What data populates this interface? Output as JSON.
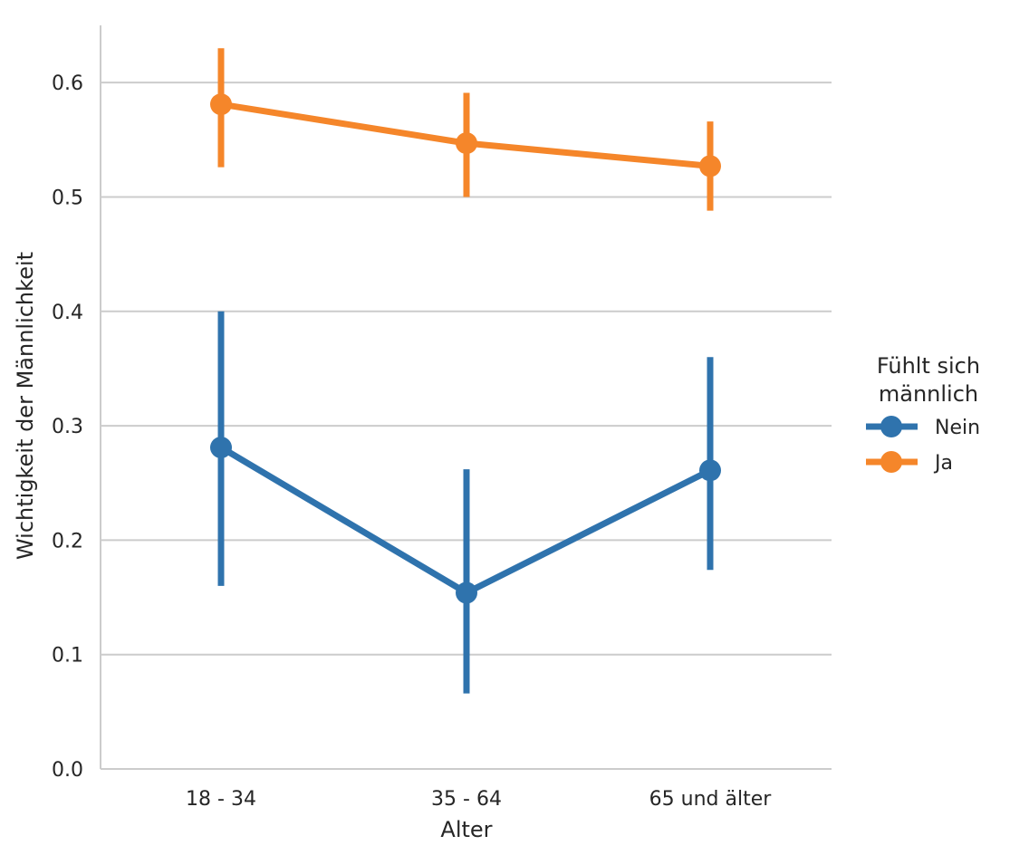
{
  "chart_data": {
    "type": "line",
    "title": "",
    "xlabel": "Alter",
    "ylabel": "Wichtigkeit der Männlichkeit",
    "categories": [
      "18 - 34",
      "35 - 64",
      "65 und älter"
    ],
    "ylim": [
      0.0,
      0.65
    ],
    "yticks": [
      0.0,
      0.1,
      0.2,
      0.3,
      0.4,
      0.5,
      0.6
    ],
    "ytick_labels": [
      "0.0",
      "0.1",
      "0.2",
      "0.3",
      "0.4",
      "0.5",
      "0.6"
    ],
    "grid": "horizontal",
    "legend": {
      "title_lines": [
        "Fühlt sich",
        "männlich"
      ],
      "placement": "right"
    },
    "series": [
      {
        "name": "Nein",
        "color": "#2f73ad",
        "values": [
          0.281,
          0.154,
          0.261
        ],
        "ci_low": [
          0.16,
          0.066,
          0.174
        ],
        "ci_high": [
          0.4,
          0.262,
          0.36
        ]
      },
      {
        "name": "Ja",
        "color": "#f5862a",
        "values": [
          0.581,
          0.547,
          0.527
        ],
        "ci_low": [
          0.526,
          0.5,
          0.488
        ],
        "ci_high": [
          0.63,
          0.591,
          0.566
        ]
      }
    ]
  }
}
